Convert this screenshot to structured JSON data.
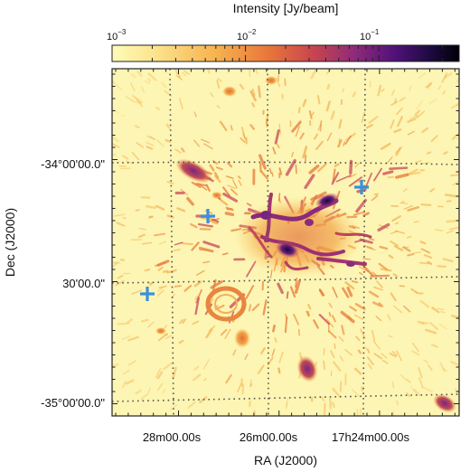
{
  "colorbar": {
    "title": "Intensity [Jy/beam]",
    "tick_labels": [
      {
        "base": "10",
        "exp": "−3",
        "value": 0.001
      },
      {
        "base": "10",
        "exp": "−2",
        "value": 0.01
      },
      {
        "base": "10",
        "exp": "−1",
        "value": 0.1
      }
    ],
    "scale": "log",
    "range": [
      0.001,
      0.4
    ],
    "colormap": [
      "#fdfbb8",
      "#fcd27a",
      "#f5a043",
      "#e0633b",
      "#b73b5e",
      "#7d2482",
      "#3f0f72",
      "#0b0526",
      "#000004"
    ]
  },
  "axes": {
    "xlabel": "RA (J2000)",
    "ylabel": "Dec (J2000)",
    "x_tick_labels": [
      "28m00.00s",
      "26m00.00s",
      "17h24m00.00s"
    ],
    "y_tick_labels": [
      "-34°00'00.0\"",
      "30'00.0\"",
      "-35°00'00.0\""
    ],
    "grid": true,
    "grid_style": "dotted"
  },
  "image": {
    "background_color": "#fdf5b3",
    "marker_color": "#3a8fdc",
    "marker_count": 3
  }
}
